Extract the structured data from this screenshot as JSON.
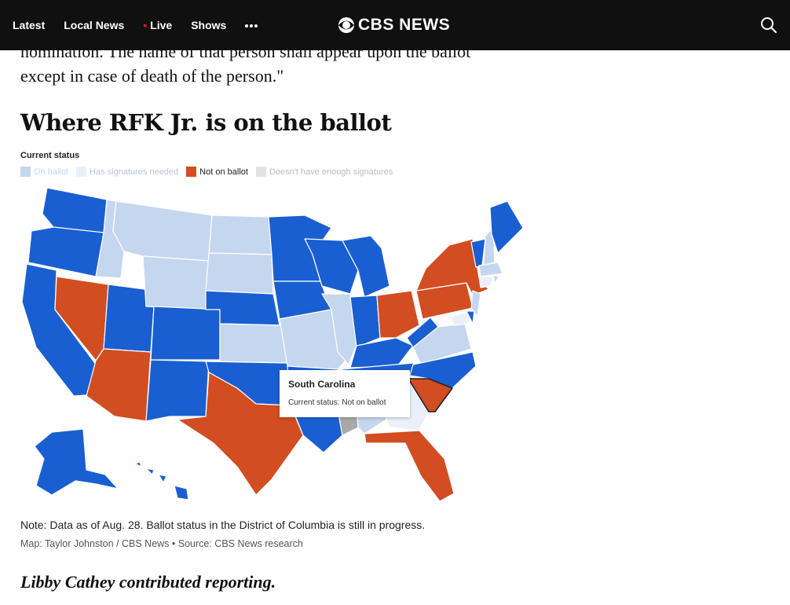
{
  "nav": {
    "items": [
      "Latest",
      "Local News",
      "Live",
      "Shows"
    ],
    "more_icon": "more-dots-icon",
    "search_icon": "search-icon",
    "live_color": "#e21b23"
  },
  "logo": {
    "text": "CBS NEWS",
    "icon": "cbs-eye-icon"
  },
  "article": {
    "quote_lines": [
      "nomination. The name of that person shall appear upon the ballot",
      "except in case of death of the person.\""
    ],
    "headline": "Where RFK Jr. is on the ballot"
  },
  "map": {
    "legend_title": "Current status",
    "legend": [
      {
        "label": "On ballot",
        "color": "#c5d6ef"
      },
      {
        "label": "Has signatures needed",
        "color": "#eaf0fa"
      },
      {
        "label": "Not on ballot",
        "color": "#d24d21"
      },
      {
        "label": "Doesn't have enough signatures",
        "color": "#e2e2e2"
      }
    ],
    "status_colors": {
      "on_ballot_highlight": "#1a5fd1",
      "on_ballot": "#c5d6ef",
      "not_on_ballot": "#d24d21",
      "not_enough": "#a8a8a8"
    },
    "tooltip": {
      "state": "South Carolina",
      "status": "Current status: Not on ballot"
    }
  },
  "note": "Note: Data as of Aug. 28. Ballot status in the District of Columbia is still in progress.",
  "credit": "Map: Taylor Johnston / CBS News • Source: CBS News research",
  "contrib": "Libby Cathey contributed reporting."
}
